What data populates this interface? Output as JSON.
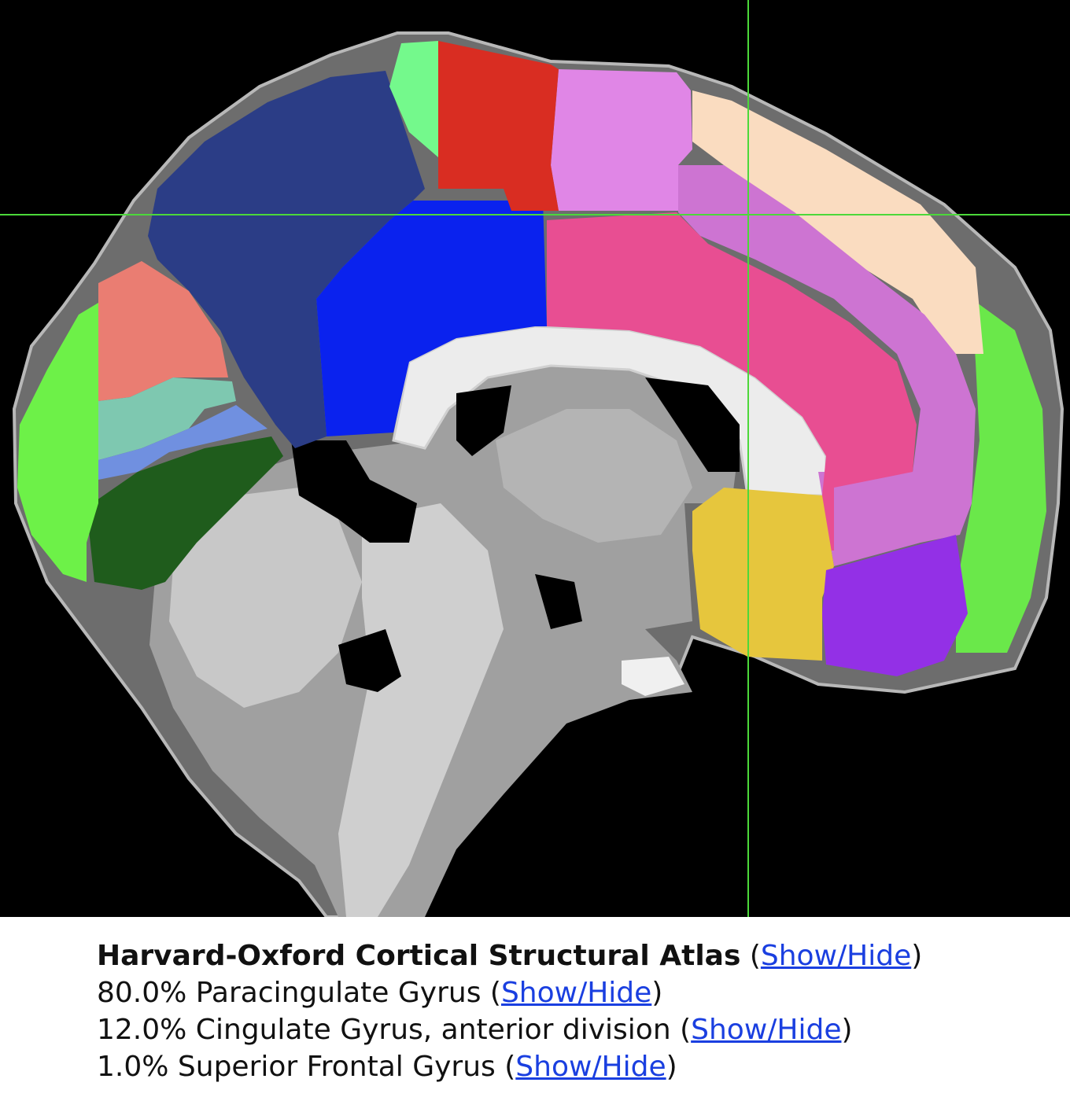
{
  "viewer": {
    "background": "#000000",
    "crosshair_color": "#4cd83a",
    "regions": [
      {
        "id": "frontal-pole",
        "color": "#6ae84a"
      },
      {
        "id": "superior-frontal-gyrus",
        "color": "#fadcc0"
      },
      {
        "id": "paracingulate-gyrus",
        "color": "#cd74d2"
      },
      {
        "id": "cingulate-gyrus-anterior",
        "color": "#e84e92"
      },
      {
        "id": "cingulate-gyrus-posterior",
        "color": "#0a22ee"
      },
      {
        "id": "precuneous-cortex",
        "color": "#2b3d86"
      },
      {
        "id": "juxtapositional-lobule",
        "color": "#e086e6"
      },
      {
        "id": "precentral-gyrus",
        "color": "#d92d22"
      },
      {
        "id": "postcentral-gyrus",
        "color": "#74f98c"
      },
      {
        "id": "cuneal-cortex",
        "color": "#ea7d72"
      },
      {
        "id": "supracalcarine-cortex",
        "color": "#7ec8b0"
      },
      {
        "id": "intracalcarine-cortex",
        "color": "#7090e0"
      },
      {
        "id": "lingual-gyrus",
        "color": "#1f5c1c"
      },
      {
        "id": "occipital-pole",
        "color": "#6df148"
      },
      {
        "id": "subcallosal-cortex",
        "color": "#e6c63d"
      },
      {
        "id": "frontal-medial-cortex",
        "color": "#9330e6"
      }
    ]
  },
  "atlas": {
    "title": "Harvard-Oxford Cortical Structural Atlas",
    "toggle_label": "Show/Hide",
    "entries": [
      {
        "text": "80.0% Paracingulate Gyrus",
        "toggle_label": "Show/Hide"
      },
      {
        "text": "12.0% Cingulate Gyrus, anterior division",
        "toggle_label": "Show/Hide"
      },
      {
        "text": "1.0% Superior Frontal Gyrus",
        "toggle_label": "Show/Hide"
      }
    ]
  }
}
